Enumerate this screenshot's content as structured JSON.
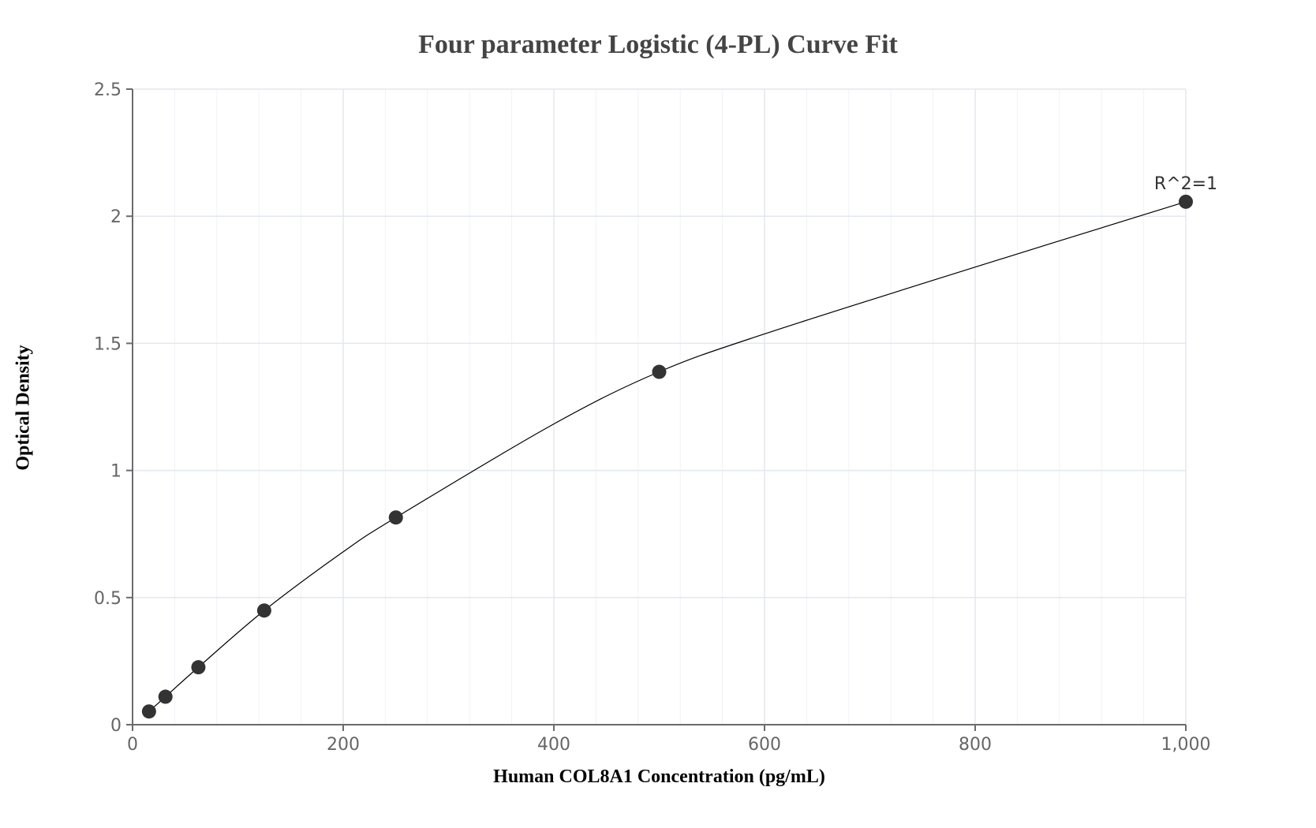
{
  "chart_data": {
    "type": "scatter",
    "title": "Four parameter Logistic (4-PL) Curve Fit",
    "xlabel": "Human COL8A1 Concentration (pg/mL)",
    "ylabel": "Optical Density",
    "xlim": [
      0,
      1000
    ],
    "ylim": [
      0,
      2.5
    ],
    "x_ticks": [
      0,
      200,
      400,
      600,
      800,
      1000
    ],
    "x_tick_labels": [
      "0",
      "200",
      "400",
      "600",
      "800",
      "1,000"
    ],
    "y_ticks": [
      0,
      0.5,
      1,
      1.5,
      2,
      2.5
    ],
    "y_tick_labels": [
      "0",
      "0.5",
      "1",
      "1.5",
      "2",
      "2.5"
    ],
    "grid": true,
    "minor_x_step": 40,
    "series": [
      {
        "name": "Standards",
        "type": "scatter",
        "x": [
          15.625,
          31.25,
          62.5,
          125,
          250,
          500,
          1000
        ],
        "y": [
          0.052,
          0.11,
          0.226,
          0.449,
          0.815,
          1.388,
          2.057
        ],
        "color": "#333333"
      },
      {
        "name": "4-PL fit",
        "type": "line",
        "x": [
          15.625,
          31.25,
          62.5,
          125,
          200,
          250,
          400,
          500,
          600,
          800,
          1000
        ],
        "y": [
          0.052,
          0.11,
          0.226,
          0.449,
          0.68,
          0.815,
          1.183,
          1.388,
          1.537,
          1.8,
          2.057
        ],
        "color": "#000000"
      }
    ],
    "annotations": [
      {
        "text": "R^2=1",
        "x": 1000,
        "y": 2.057
      }
    ]
  },
  "colors": {
    "axis": "#6b6b6b",
    "grid_major": "#e3e7ef",
    "grid_minor": "#f0f2f7",
    "marker": "#333333",
    "curve": "#000000"
  }
}
